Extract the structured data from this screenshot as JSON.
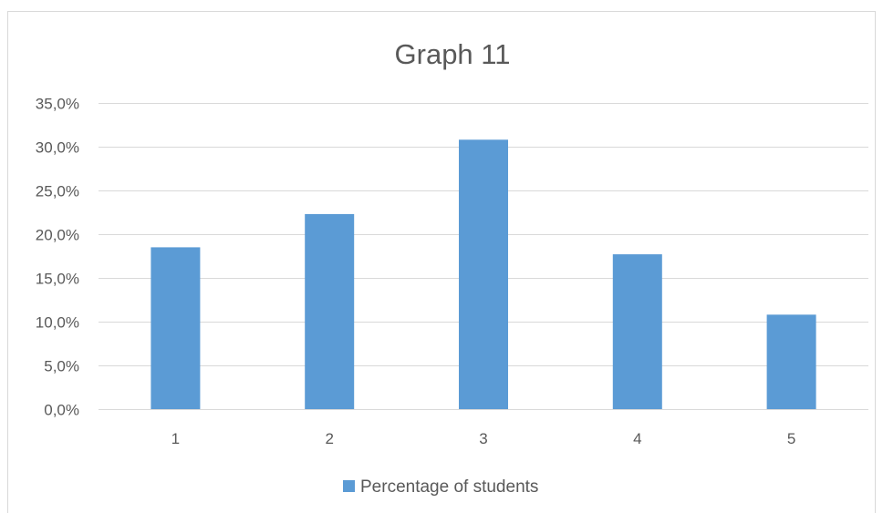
{
  "chart_data": {
    "type": "bar",
    "title": "Graph 11",
    "xlabel": "",
    "ylabel": "",
    "categories": [
      "1",
      "2",
      "3",
      "4",
      "5"
    ],
    "series": [
      {
        "name": "Percentage of students",
        "values": [
          18.5,
          22.3,
          30.8,
          17.7,
          10.8
        ]
      }
    ],
    "ylim": [
      0,
      35
    ],
    "yticks": [
      0,
      5,
      10,
      15,
      20,
      25,
      30,
      35
    ],
    "ytick_labels": [
      "0,0%",
      "5,0%",
      "10,0%",
      "15,0%",
      "20,0%",
      "25,0%",
      "30,0%",
      "35,0%"
    ],
    "grid": true,
    "legend_position": "bottom",
    "colors": {
      "bar": "#5b9bd5",
      "grid": "#d9d9d9",
      "text": "#595959"
    }
  }
}
